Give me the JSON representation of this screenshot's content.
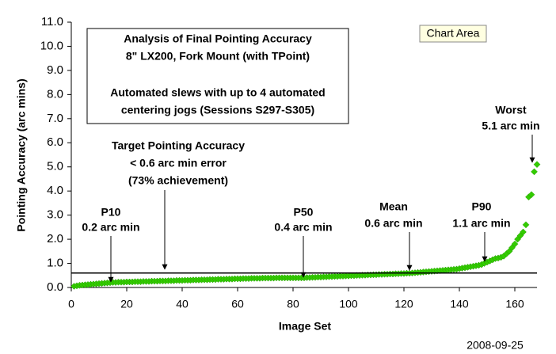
{
  "chart_data": {
    "type": "scatter",
    "title": [
      "Analysis of Final Pointing Accuracy",
      "8\" LX200, Fork Mount (with TPoint)",
      "Automated slews with up to 4 automated",
      "centering jogs  (Sessions S297-S305)"
    ],
    "xlabel": "Image Set",
    "ylabel": "Pointing Accuracy (arc mins)",
    "date": "2008-09-25",
    "hover_label": "Chart Area",
    "xlim": [
      0,
      168
    ],
    "xticks": [
      0,
      20,
      40,
      60,
      80,
      100,
      120,
      140,
      160
    ],
    "ylim": [
      0,
      11
    ],
    "yticks": [
      {
        "value": 0,
        "label": "0.0"
      },
      {
        "value": 1,
        "label": "1.0"
      },
      {
        "value": 2,
        "label": "2.0"
      },
      {
        "value": 3,
        "label": "3.0"
      },
      {
        "value": 4,
        "label": "4.0"
      },
      {
        "value": 5,
        "label": "5.0"
      },
      {
        "value": 6,
        "label": "6.0"
      },
      {
        "value": 7,
        "label": "7.0"
      },
      {
        "value": 8,
        "label": "8.0"
      },
      {
        "value": 9,
        "label": "9.0"
      },
      {
        "value": 10,
        "label": "10.0"
      },
      {
        "value": 11,
        "label": "11.0"
      }
    ],
    "reference_line": 0.6,
    "annotations": [
      [
        "P10",
        "0.2 arc min"
      ],
      [
        "Target Pointing Accuracy",
        "< 0.6 arc min error",
        "(73% achievement)"
      ],
      [
        "P50",
        "0.4 arc min"
      ],
      [
        "Mean",
        "0.6 arc min"
      ],
      [
        "P90",
        "1.1 arc min"
      ],
      [
        "Worst",
        "5.1 arc min"
      ]
    ],
    "series": [
      {
        "color": "#33cc00",
        "x": [
          1,
          2,
          3,
          4,
          5,
          6,
          7,
          8,
          9,
          10,
          11,
          12,
          13,
          14,
          15,
          16,
          17,
          18,
          19,
          20,
          21,
          22,
          23,
          24,
          25,
          26,
          27,
          28,
          29,
          30,
          31,
          32,
          33,
          34,
          35,
          36,
          37,
          38,
          39,
          40,
          41,
          42,
          43,
          44,
          45,
          46,
          47,
          48,
          49,
          50,
          51,
          52,
          53,
          54,
          55,
          56,
          57,
          58,
          59,
          60,
          61,
          62,
          63,
          64,
          65,
          66,
          67,
          68,
          69,
          70,
          71,
          72,
          73,
          74,
          75,
          76,
          77,
          78,
          79,
          80,
          81,
          82,
          83,
          84,
          85,
          86,
          87,
          88,
          89,
          90,
          91,
          92,
          93,
          94,
          95,
          96,
          97,
          98,
          99,
          100,
          101,
          102,
          103,
          104,
          105,
          106,
          107,
          108,
          109,
          110,
          111,
          112,
          113,
          114,
          115,
          116,
          117,
          118,
          119,
          120,
          121,
          122,
          123,
          124,
          125,
          126,
          127,
          128,
          129,
          130,
          131,
          132,
          133,
          134,
          135,
          136,
          137,
          138,
          139,
          140,
          141,
          142,
          143,
          144,
          145,
          146,
          147,
          148,
          149,
          150,
          151,
          152,
          153,
          154,
          155,
          156,
          157,
          158,
          159,
          160,
          161,
          162,
          163,
          164,
          165,
          166,
          167,
          168
        ],
        "values": [
          0.05,
          0.07,
          0.09,
          0.1,
          0.11,
          0.12,
          0.13,
          0.14,
          0.15,
          0.16,
          0.17,
          0.18,
          0.19,
          0.2,
          0.21,
          0.21,
          0.22,
          0.22,
          0.22,
          0.23,
          0.23,
          0.23,
          0.24,
          0.24,
          0.24,
          0.25,
          0.25,
          0.25,
          0.26,
          0.26,
          0.26,
          0.27,
          0.27,
          0.27,
          0.28,
          0.28,
          0.28,
          0.29,
          0.29,
          0.29,
          0.3,
          0.3,
          0.3,
          0.31,
          0.31,
          0.31,
          0.32,
          0.32,
          0.32,
          0.33,
          0.33,
          0.33,
          0.34,
          0.34,
          0.34,
          0.35,
          0.35,
          0.35,
          0.36,
          0.36,
          0.36,
          0.37,
          0.37,
          0.37,
          0.38,
          0.38,
          0.38,
          0.38,
          0.39,
          0.39,
          0.39,
          0.39,
          0.39,
          0.4,
          0.4,
          0.4,
          0.4,
          0.4,
          0.4,
          0.4,
          0.4,
          0.4,
          0.4,
          0.4,
          0.41,
          0.41,
          0.42,
          0.42,
          0.43,
          0.43,
          0.44,
          0.44,
          0.45,
          0.45,
          0.46,
          0.46,
          0.47,
          0.47,
          0.48,
          0.48,
          0.49,
          0.49,
          0.5,
          0.5,
          0.51,
          0.51,
          0.52,
          0.52,
          0.53,
          0.53,
          0.54,
          0.54,
          0.55,
          0.55,
          0.56,
          0.56,
          0.57,
          0.57,
          0.58,
          0.58,
          0.59,
          0.59,
          0.6,
          0.61,
          0.62,
          0.63,
          0.64,
          0.65,
          0.66,
          0.67,
          0.68,
          0.69,
          0.7,
          0.71,
          0.72,
          0.73,
          0.74,
          0.75,
          0.76,
          0.78,
          0.8,
          0.82,
          0.84,
          0.86,
          0.88,
          0.9,
          0.92,
          0.95,
          1.0,
          1.05,
          1.1,
          1.15,
          1.2,
          1.22,
          1.25,
          1.3,
          1.4,
          1.5,
          1.65,
          1.8,
          2.0,
          2.15,
          2.3,
          2.6,
          3.75,
          3.85,
          4.8,
          5.1
        ]
      }
    ]
  }
}
